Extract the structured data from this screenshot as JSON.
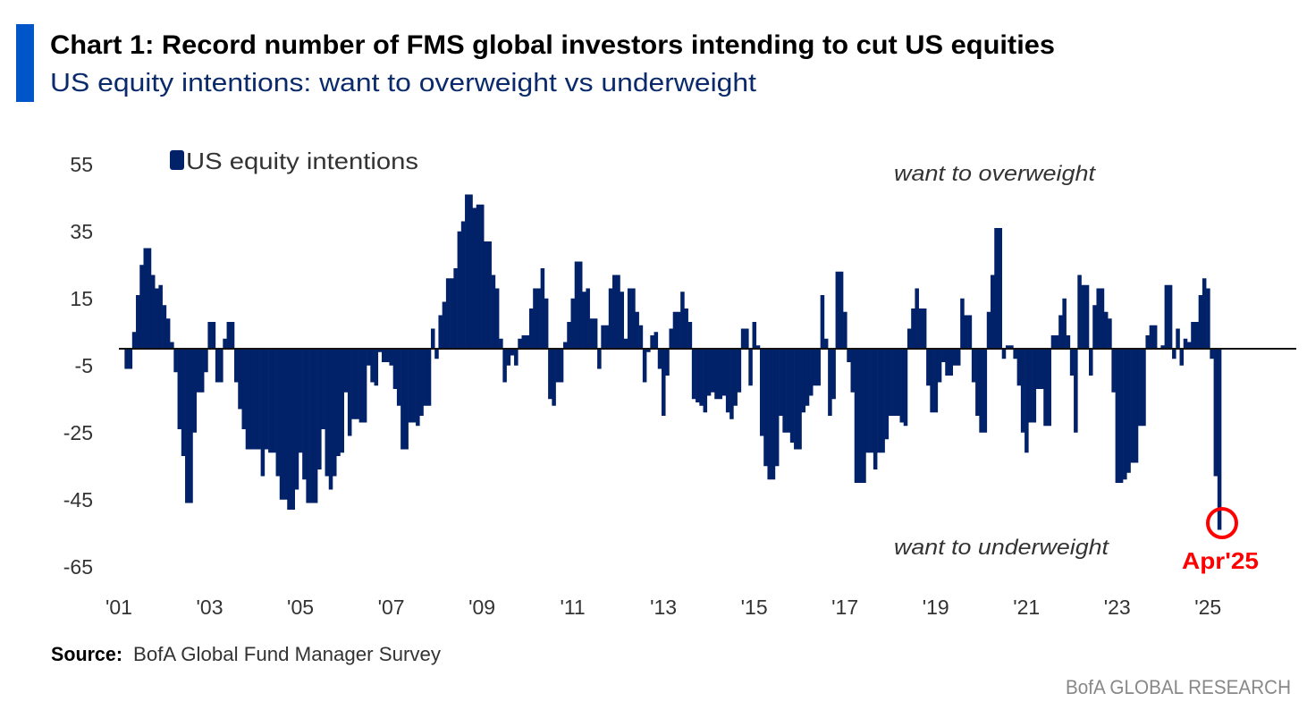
{
  "header": {
    "title": "Chart 1: Record number of FMS global investors intending to cut US equities",
    "subtitle": "US equity intentions: want to overweight vs underweight"
  },
  "colors": {
    "accent": "#0055C8",
    "bars": "#012169",
    "highlight": "#FF0000",
    "title": "#000000",
    "subtitle": "#0A2A6B"
  },
  "chart_data": {
    "type": "bar",
    "title": "Chart 1: Record number of FMS global investors intending to cut US equities",
    "subtitle": "US equity intentions: want to overweight vs underweight",
    "xlabel": "",
    "ylabel": "",
    "ylim": [
      -65,
      55
    ],
    "y_ticks": [
      "55",
      "35",
      "15",
      "-5",
      "-25",
      "-45",
      "-65"
    ],
    "y_tick_values": [
      55,
      35,
      15,
      -5,
      -25,
      -45,
      -65
    ],
    "x_ticks": [
      "'01",
      "'03",
      "'05",
      "'07",
      "'09",
      "'11",
      "'13",
      "'15",
      "'17",
      "'19",
      "'21",
      "'23",
      "'25"
    ],
    "x_tick_years": [
      2001,
      2003,
      2005,
      2007,
      2009,
      2011,
      2013,
      2015,
      2017,
      2019,
      2021,
      2023,
      2025
    ],
    "legend": [
      "US equity intentions"
    ],
    "legend_position": "top-left",
    "grid": false,
    "frequency": "monthly",
    "start": "Mar 2001",
    "end": "Apr 2025",
    "series": [
      {
        "name": "US equity intentions",
        "values": [
          -6,
          -6,
          5,
          16,
          25,
          30,
          30,
          22,
          18,
          19,
          13,
          9,
          2,
          -7,
          -24,
          -32,
          -46,
          -46,
          -25,
          -13,
          -13,
          -7,
          8,
          8,
          -10,
          -10,
          3,
          8,
          8,
          -10,
          -18,
          -24,
          -30,
          -30,
          -30,
          -30,
          -38,
          -30,
          -31,
          -31,
          -38,
          -45,
          -45,
          -48,
          -48,
          -42,
          -31,
          -39,
          -46,
          -46,
          -46,
          -36,
          -24,
          -38,
          -42,
          -38,
          -32,
          -31,
          -13,
          -26,
          -21,
          -21,
          -22,
          -22,
          -5,
          -10,
          -11,
          -1,
          -4,
          -4,
          -5,
          -12,
          -17,
          -30,
          -30,
          -22,
          -22,
          -23,
          -20,
          -17,
          -17,
          6,
          -3,
          10,
          14,
          21,
          21,
          24,
          35,
          38,
          46,
          46,
          42,
          43,
          43,
          32,
          32,
          22,
          18,
          3,
          -10,
          -5,
          -2,
          -5,
          3,
          4,
          4,
          12,
          18,
          18,
          24,
          15,
          -15,
          -17,
          -10,
          -10,
          2,
          8,
          15,
          26,
          26,
          17,
          18,
          9,
          9,
          -6,
          7,
          7,
          18,
          22,
          22,
          17,
          3,
          18,
          18,
          11,
          7,
          -10,
          -1,
          4,
          5,
          -6,
          -20,
          -8,
          6,
          11,
          11,
          17,
          12,
          8,
          -15,
          -16,
          -17,
          -19,
          -14,
          -13,
          -15,
          -15,
          -14,
          -19,
          -21,
          -17,
          -13,
          6,
          6,
          -11,
          8,
          1,
          -26,
          -35,
          -39,
          -39,
          -35,
          -20,
          -25,
          -25,
          -28,
          -30,
          -30,
          -19,
          -17,
          -14,
          -11,
          -11,
          16,
          3,
          -20,
          -15,
          23,
          23,
          11,
          -4,
          -13,
          -40,
          -40,
          -40,
          -31,
          -31,
          -36,
          -31,
          -31,
          -27,
          -20,
          -20,
          -20,
          -22,
          -23,
          6,
          12,
          18,
          12,
          12,
          -11,
          -19,
          -19,
          -10,
          -4,
          -8,
          -8,
          -5,
          -5,
          15,
          10,
          10,
          -10,
          -20,
          -25,
          -25,
          11,
          22,
          36,
          36,
          -3,
          1,
          1,
          -3,
          -11,
          -25,
          -31,
          -22,
          -22,
          -12,
          -12,
          -23,
          -23,
          4,
          4,
          10,
          15,
          4,
          -8,
          -25,
          22,
          19,
          19,
          -8,
          13,
          18,
          18,
          11,
          9,
          -13,
          -40,
          -40,
          -39,
          -37,
          -34,
          -34,
          -23,
          -23,
          4,
          7,
          7,
          0,
          1,
          19,
          19,
          -3,
          6,
          -5,
          3,
          2,
          8,
          8,
          16,
          21,
          18,
          -3,
          -38,
          -54
        ]
      }
    ],
    "annotations": {
      "upper": "want to overweight",
      "lower": "want to underweight",
      "highlight_label": "Apr'25"
    }
  },
  "footer": {
    "source_label": "Source:",
    "source_text": "BofA Global Fund Manager Survey",
    "brand": "BofA GLOBAL RESEARCH"
  }
}
